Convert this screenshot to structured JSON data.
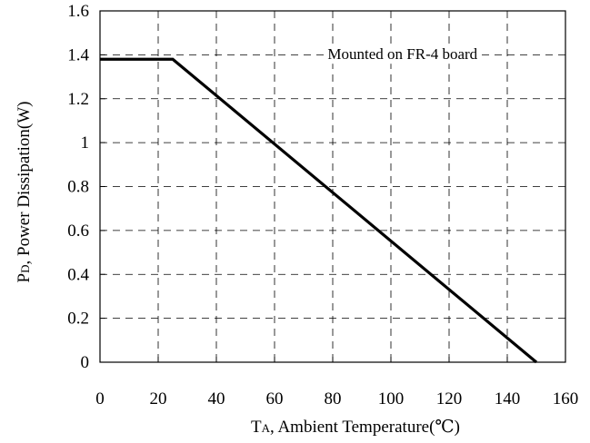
{
  "chart_data": {
    "type": "line",
    "title": "",
    "xlabel": {
      "main": "T",
      "sub": "A",
      "rest": ", Ambient Temperature(℃)"
    },
    "ylabel": {
      "main": "P",
      "sub": "D",
      "rest": ", Power Dissipation(W)"
    },
    "xlim": [
      0,
      160
    ],
    "ylim": [
      0,
      1.6
    ],
    "xticks": [
      0,
      20,
      40,
      60,
      80,
      100,
      120,
      140,
      160
    ],
    "yticks": [
      0,
      0.2,
      0.4,
      0.6,
      0.8,
      1,
      1.2,
      1.4,
      1.6
    ],
    "xtick_labels": [
      "0",
      "20",
      "40",
      "60",
      "80",
      "100",
      "120",
      "140",
      "160"
    ],
    "ytick_labels": [
      "0",
      "0.2",
      "0.4",
      "0.6",
      "0.8",
      "1",
      "1.2",
      "1.4",
      "1.6"
    ],
    "grid": true,
    "grid_style": "dashed",
    "series": [
      {
        "x": [
          0,
          25,
          150
        ],
        "y": [
          1.38,
          1.38,
          0
        ],
        "color": "#000000"
      }
    ],
    "annotations": [
      {
        "text": "Mounted on FR-4 board",
        "x": 104,
        "y": 1.38
      }
    ]
  }
}
